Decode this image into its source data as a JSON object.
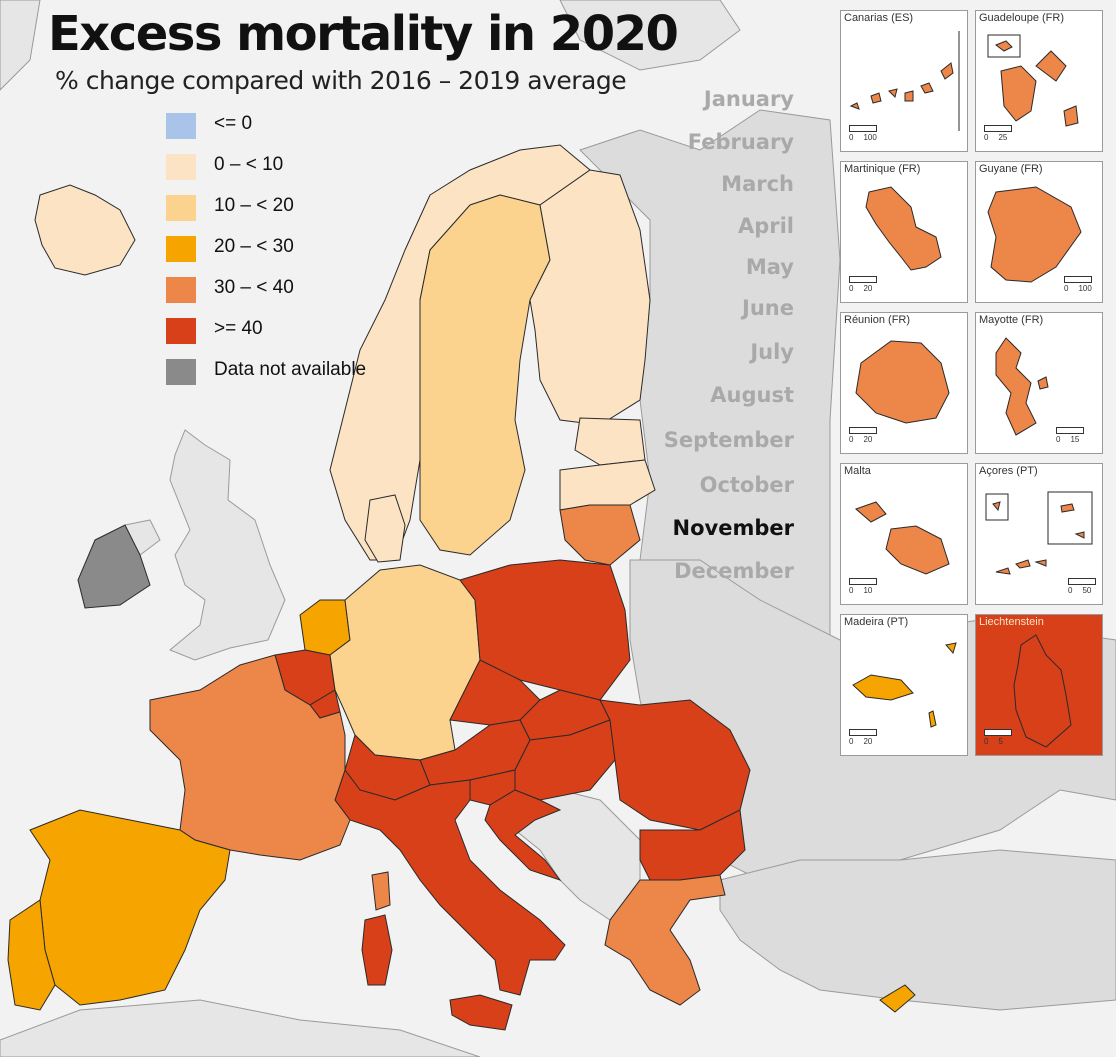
{
  "map": {
    "title": "Excess mortality in 2020",
    "subtitle": "% change compared with 2016 – 2019 average",
    "legend": [
      {
        "label": "<= 0",
        "color": "#a9c4e8"
      },
      {
        "label": "0 – < 10",
        "color": "#fbe3c3"
      },
      {
        "label": "10 – < 20",
        "color": "#fbd38e"
      },
      {
        "label": "20 – < 30",
        "color": "#f5a400"
      },
      {
        "label": "30 – < 40",
        "color": "#ec8649"
      },
      {
        "label": ">= 40",
        "color": "#d8401a"
      },
      {
        "label": "Data not available",
        "color": "#8a8a8a"
      }
    ],
    "months": [
      "January",
      "February",
      "March",
      "April",
      "May",
      "June",
      "July",
      "August",
      "September",
      "October",
      "November",
      "December"
    ],
    "selected_month": "November",
    "colors": {
      "sea": "#f2f2f2",
      "non_eu_land": "#dcdcdc",
      "non_eu_light": "#e6e6e6",
      "border": "#2a2a2a"
    },
    "insets": [
      {
        "title": "Canarias (ES)",
        "scale": [
          "0",
          "100"
        ],
        "class": "30 – < 40"
      },
      {
        "title": "Guadeloupe (FR)",
        "scale": [
          "0",
          "25"
        ],
        "class": "30 – < 40"
      },
      {
        "title": "Martinique (FR)",
        "scale": [
          "0",
          "20"
        ],
        "class": "30 – < 40"
      },
      {
        "title": "Guyane (FR)",
        "scale": [
          "0",
          "100"
        ],
        "class": "30 – < 40"
      },
      {
        "title": "Réunion (FR)",
        "scale": [
          "0",
          "20"
        ],
        "class": "30 – < 40"
      },
      {
        "title": "Mayotte (FR)",
        "scale": [
          "0",
          "15"
        ],
        "class": "30 – < 40"
      },
      {
        "title": "Malta",
        "scale": [
          "0",
          "10"
        ],
        "class": "30 – < 40"
      },
      {
        "title": "Açores (PT)",
        "scale": [
          "0",
          "50"
        ],
        "class": "30 – < 40"
      },
      {
        "title": "Madeira (PT)",
        "scale": [
          "0",
          "20"
        ],
        "class": "20 – < 30"
      },
      {
        "title": "Liechtenstein",
        "scale": [
          "0",
          "5"
        ],
        "class": ">= 40"
      }
    ],
    "regions": [
      {
        "name": "Iceland",
        "class": "0 – < 10"
      },
      {
        "name": "Norway",
        "class": "0 – < 10"
      },
      {
        "name": "Sweden",
        "class": "10 – < 20"
      },
      {
        "name": "Finland",
        "class": "0 – < 10"
      },
      {
        "name": "Denmark",
        "class": "0 – < 10"
      },
      {
        "name": "Estonia",
        "class": "0 – < 10"
      },
      {
        "name": "Latvia",
        "class": "0 – < 10"
      },
      {
        "name": "Lithuania",
        "class": "30 – < 40"
      },
      {
        "name": "Ireland",
        "class": "Data not available"
      },
      {
        "name": "Netherlands",
        "class": "20 – < 30"
      },
      {
        "name": "Belgium",
        "class": ">= 40"
      },
      {
        "name": "Luxembourg",
        "class": ">= 40"
      },
      {
        "name": "Germany",
        "class": "10 – < 20"
      },
      {
        "name": "Poland",
        "class": ">= 40"
      },
      {
        "name": "Czechia",
        "class": ">= 40"
      },
      {
        "name": "Slovakia",
        "class": ">= 40"
      },
      {
        "name": "Austria",
        "class": ">= 40"
      },
      {
        "name": "Hungary",
        "class": ">= 40"
      },
      {
        "name": "Switzerland",
        "class": ">= 40"
      },
      {
        "name": "Slovenia",
        "class": ">= 40"
      },
      {
        "name": "Croatia",
        "class": ">= 40"
      },
      {
        "name": "Romania",
        "class": ">= 40"
      },
      {
        "name": "Bulgaria",
        "class": ">= 40"
      },
      {
        "name": "Italy",
        "class": ">= 40"
      },
      {
        "name": "Sardinia",
        "class": ">= 40"
      },
      {
        "name": "Sicily",
        "class": ">= 40"
      },
      {
        "name": "Corsica",
        "class": "30 – < 40"
      },
      {
        "name": "France",
        "class": "30 – < 40"
      },
      {
        "name": "Spain",
        "class": "20 – < 30"
      },
      {
        "name": "Portugal",
        "class": "20 – < 30"
      },
      {
        "name": "Greece",
        "class": "30 – < 40"
      },
      {
        "name": "Cyprus",
        "class": "20 – < 30"
      }
    ]
  }
}
